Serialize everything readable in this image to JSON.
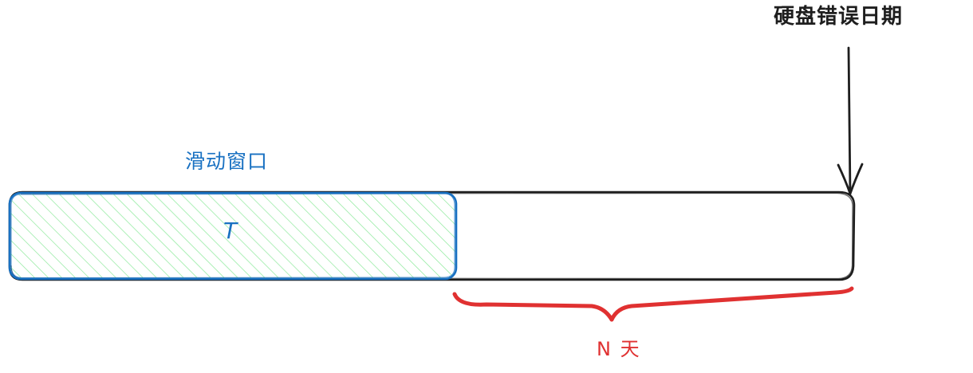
{
  "labels": {
    "disk_error_date": "硬盘错误日期",
    "sliding_window": "滑动窗口",
    "window_length": "T",
    "n_days": "N 天"
  },
  "colors": {
    "stroke": "#1e1e1e",
    "window_stroke": "#1971c2",
    "window_hatch": "#b2f2bb",
    "brace": "#e03131"
  }
}
